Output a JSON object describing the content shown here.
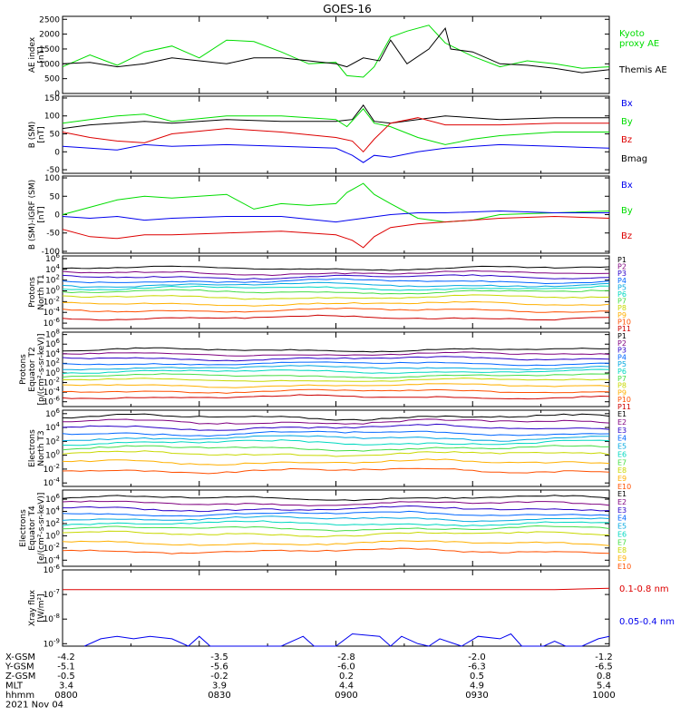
{
  "title": "GOES-16",
  "footer": {
    "rows": [
      {
        "label": "X-GSM",
        "values": [
          "-4.2",
          "-3.5",
          "-2.8",
          "-2.0",
          "-1.2"
        ]
      },
      {
        "label": "Y-GSM",
        "values": [
          "-5.1",
          "-5.6",
          "-6.0",
          "-6.3",
          "-6.5"
        ]
      },
      {
        "label": "Z-GSM",
        "values": [
          "-0.5",
          "-0.2",
          "0.2",
          "0.5",
          "0.8"
        ]
      },
      {
        "label": "MLT",
        "values": [
          "3.4",
          "3.9",
          "4.4",
          "4.9",
          "5.4"
        ]
      },
      {
        "label": "hhmm",
        "values": [
          "0800",
          "0830",
          "0900",
          "0930",
          "1000"
        ]
      }
    ],
    "date": "2021 Nov 04"
  },
  "colors": {
    "black": "#000000",
    "green": "#00dd00",
    "blue": "#0000ee",
    "red": "#dd0000",
    "rainbow": [
      "#000000",
      "#7f007f",
      "#2a00c8",
      "#0066ff",
      "#00a8e0",
      "#00d8c0",
      "#44dd44",
      "#c8d800",
      "#ffb000",
      "#ff5000",
      "#cc0000"
    ]
  },
  "chart_data": [
    {
      "type": "line",
      "ylabel": "AE index\n[nT]",
      "yticks": [
        "2500",
        "2000",
        "1500",
        "1000",
        "500",
        "0"
      ],
      "ylim": [
        0,
        2600
      ],
      "legend": [
        "Kyoto\nproxy AE",
        "Themis AE"
      ],
      "series": [
        {
          "name": "Kyoto proxy AE",
          "color": "green",
          "x": [
            0,
            0.05,
            0.1,
            0.15,
            0.2,
            0.25,
            0.3,
            0.35,
            0.4,
            0.45,
            0.5,
            0.52,
            0.55,
            0.57,
            0.6,
            0.63,
            0.67,
            0.7,
            0.75,
            0.8,
            0.85,
            0.9,
            0.95,
            1
          ],
          "y": [
            900,
            1300,
            950,
            1400,
            1600,
            1200,
            1800,
            1750,
            1400,
            1000,
            1050,
            600,
            550,
            900,
            1900,
            2100,
            2300,
            1700,
            1250,
            900,
            1100,
            1000,
            850,
            900
          ]
        },
        {
          "name": "Themis AE",
          "color": "black",
          "x": [
            0,
            0.05,
            0.1,
            0.15,
            0.2,
            0.25,
            0.3,
            0.35,
            0.4,
            0.45,
            0.5,
            0.52,
            0.55,
            0.58,
            0.6,
            0.63,
            0.67,
            0.7,
            0.71,
            0.75,
            0.8,
            0.85,
            0.9,
            0.95,
            1
          ],
          "y": [
            1000,
            1050,
            900,
            1000,
            1200,
            1100,
            1000,
            1200,
            1200,
            1100,
            1000,
            900,
            1200,
            1100,
            1800,
            1000,
            1500,
            2200,
            1500,
            1400,
            1000,
            950,
            850,
            700,
            800
          ]
        }
      ]
    },
    {
      "type": "line",
      "ylabel": "B (SM)\n[nT]",
      "yticks": [
        "150",
        "100",
        "50",
        "0",
        "-50"
      ],
      "ylim": [
        -60,
        155
      ],
      "legend": [
        "Bx",
        "By",
        "Bz",
        "Bmag"
      ],
      "series": [
        {
          "name": "Bmag",
          "color": "black",
          "x": [
            0,
            0.05,
            0.1,
            0.15,
            0.2,
            0.3,
            0.4,
            0.5,
            0.53,
            0.55,
            0.57,
            0.6,
            0.7,
            0.8,
            0.9,
            1
          ],
          "y": [
            65,
            75,
            80,
            85,
            80,
            90,
            85,
            85,
            90,
            130,
            85,
            80,
            100,
            90,
            95,
            95
          ]
        },
        {
          "name": "By",
          "color": "green",
          "x": [
            0,
            0.05,
            0.1,
            0.15,
            0.2,
            0.3,
            0.4,
            0.5,
            0.52,
            0.55,
            0.57,
            0.6,
            0.65,
            0.7,
            0.75,
            0.8,
            0.9,
            1
          ],
          "y": [
            80,
            90,
            100,
            105,
            85,
            100,
            100,
            90,
            70,
            120,
            80,
            70,
            40,
            20,
            35,
            45,
            55,
            55
          ]
        },
        {
          "name": "Bz",
          "color": "red",
          "x": [
            0,
            0.05,
            0.1,
            0.15,
            0.2,
            0.3,
            0.4,
            0.5,
            0.53,
            0.55,
            0.57,
            0.6,
            0.65,
            0.7,
            0.8,
            0.9,
            1
          ],
          "y": [
            55,
            40,
            30,
            25,
            50,
            65,
            55,
            40,
            30,
            0,
            35,
            80,
            95,
            75,
            75,
            80,
            80
          ]
        },
        {
          "name": "Bx",
          "color": "blue",
          "x": [
            0,
            0.05,
            0.1,
            0.15,
            0.2,
            0.3,
            0.4,
            0.5,
            0.53,
            0.55,
            0.57,
            0.6,
            0.65,
            0.7,
            0.8,
            0.9,
            1
          ],
          "y": [
            15,
            10,
            5,
            20,
            15,
            20,
            15,
            10,
            -10,
            -30,
            -10,
            -15,
            0,
            10,
            20,
            15,
            10
          ]
        }
      ]
    },
    {
      "type": "line",
      "ylabel": "B (SM)-IGRF (SM)\n[nT]",
      "yticks": [
        "100",
        "50",
        "0",
        "-50",
        "-100"
      ],
      "ylim": [
        -105,
        105
      ],
      "legend": [
        "Bx",
        "By",
        "Bz"
      ],
      "series": [
        {
          "name": "By",
          "color": "green",
          "x": [
            0,
            0.05,
            0.1,
            0.15,
            0.2,
            0.3,
            0.35,
            0.4,
            0.45,
            0.5,
            0.52,
            0.55,
            0.57,
            0.6,
            0.65,
            0.7,
            0.75,
            0.8,
            0.9,
            1
          ],
          "y": [
            0,
            20,
            40,
            50,
            45,
            55,
            15,
            30,
            25,
            30,
            60,
            85,
            55,
            30,
            -10,
            -20,
            -15,
            0,
            5,
            10
          ]
        },
        {
          "name": "Bx",
          "color": "blue",
          "x": [
            0,
            0.05,
            0.1,
            0.15,
            0.2,
            0.3,
            0.4,
            0.5,
            0.55,
            0.6,
            0.65,
            0.7,
            0.8,
            0.9,
            1
          ],
          "y": [
            -5,
            -10,
            -5,
            -15,
            -10,
            -5,
            -5,
            -20,
            -10,
            0,
            5,
            5,
            10,
            5,
            5
          ]
        },
        {
          "name": "Bz",
          "color": "red",
          "x": [
            0,
            0.05,
            0.1,
            0.15,
            0.2,
            0.3,
            0.4,
            0.5,
            0.53,
            0.55,
            0.57,
            0.6,
            0.65,
            0.7,
            0.8,
            0.9,
            1
          ],
          "y": [
            -40,
            -60,
            -65,
            -55,
            -55,
            -50,
            -45,
            -55,
            -70,
            -90,
            -60,
            -35,
            -25,
            -20,
            -10,
            -5,
            -10
          ]
        }
      ]
    },
    {
      "type": "line",
      "log": true,
      "ylabel": "Protons\nNorth T1",
      "yticks": [
        "10^6",
        "10^4",
        "10^2",
        "10^0",
        "10^-2",
        "10^-4",
        "10^-6"
      ],
      "ylim_exp": [
        -7,
        6.5
      ],
      "channels": [
        "P1",
        "P2",
        "P3",
        "P4",
        "P5",
        "P6",
        "P7",
        "P8",
        "P9",
        "P10",
        "P11"
      ],
      "levels": [
        4.2,
        3.3,
        2.6,
        1.8,
        1.1,
        0.5,
        -0.2,
        -1.2,
        -2.4,
        -3.6,
        -5.0
      ]
    },
    {
      "type": "line",
      "log": true,
      "ylabel": "Protons\nEquator T2\n[p/(cm²-s-sr-keV)]",
      "yticks": [
        "10^8",
        "10^6",
        "10^4",
        "10^2",
        "10^0",
        "10^-2",
        "10^-4",
        "10^-6"
      ],
      "ylim_exp": [
        -7,
        8.5
      ],
      "channels": [
        "P1",
        "P2",
        "P3",
        "P4",
        "P5",
        "P6",
        "P7",
        "P8",
        "P9",
        "P10",
        "P11"
      ],
      "levels": [
        4.8,
        3.9,
        3.0,
        2.0,
        1.1,
        0.3,
        -0.6,
        -1.5,
        -2.6,
        -3.8,
        -5.0
      ]
    },
    {
      "type": "line",
      "log": true,
      "ylabel": "Electrons\nNorth T3",
      "yticks": [
        "10^6",
        "10^4",
        "10^2",
        "10^0",
        "10^-2",
        "10^-4"
      ],
      "ylim_exp": [
        -4.5,
        6.5
      ],
      "channels": [
        "E1",
        "E2",
        "E3",
        "E4",
        "E5",
        "E6",
        "E7",
        "E8",
        "E9",
        "E10"
      ],
      "levels": [
        5.5,
        4.8,
        4.0,
        3.2,
        2.5,
        1.8,
        1.0,
        0.2,
        -1.0,
        -2.2
      ]
    },
    {
      "type": "line",
      "log": true,
      "ylabel": "Electrons\nEquator T4\n[e/(cm²-s-sr-keV)]",
      "yticks": [
        "10^6",
        "10^4",
        "10^2",
        "10^0",
        "10^-2",
        "10^-4"
      ],
      "ylim_exp": [
        -5,
        7.5
      ],
      "channels": [
        "E1",
        "E2",
        "E3",
        "E4",
        "E5",
        "E6",
        "E7",
        "E8",
        "E9",
        "E10"
      ],
      "levels": [
        6.2,
        5.3,
        4.4,
        3.6,
        2.8,
        2.0,
        1.2,
        0.3,
        -1.2,
        -2.5
      ]
    },
    {
      "type": "line",
      "log": true,
      "ylabel": "Xray flux\n[W/m²]",
      "yticks": [
        "10^-6",
        "10^-7",
        "10^-8",
        "10^-9"
      ],
      "ylim_exp": [
        -9.1,
        -6
      ],
      "legend": [
        "0.1-0.8 nm",
        "0.05-0.4 nm"
      ],
      "series": [
        {
          "name": "0.1-0.8 nm",
          "color": "red",
          "x": [
            0,
            0.1,
            0.2,
            0.3,
            0.4,
            0.5,
            0.6,
            0.7,
            0.8,
            0.9,
            1
          ],
          "y": [
            -6.8,
            -6.8,
            -6.8,
            -6.8,
            -6.8,
            -6.8,
            -6.8,
            -6.8,
            -6.8,
            -6.8,
            -6.75
          ]
        },
        {
          "name": "0.05-0.4 nm",
          "color": "blue",
          "x": [
            0.04,
            0.07,
            0.1,
            0.13,
            0.16,
            0.2,
            0.23,
            0.25,
            0.27,
            0.4,
            0.44,
            0.46,
            0.5,
            0.53,
            0.58,
            0.6,
            0.62,
            0.65,
            0.67,
            0.69,
            0.73,
            0.76,
            0.8,
            0.82,
            0.84,
            0.88,
            0.9,
            0.92,
            0.95,
            0.98,
            1
          ],
          "y": [
            -9.1,
            -8.8,
            -8.7,
            -8.8,
            -8.7,
            -8.8,
            -9.1,
            -8.7,
            -9.1,
            -9.1,
            -8.7,
            -9.1,
            -9.1,
            -8.6,
            -8.7,
            -9.1,
            -8.7,
            -9.0,
            -9.1,
            -8.8,
            -9.1,
            -8.7,
            -8.8,
            -8.6,
            -9.1,
            -9.1,
            -8.9,
            -9.1,
            -9.1,
            -8.8,
            -8.7
          ]
        }
      ]
    }
  ]
}
